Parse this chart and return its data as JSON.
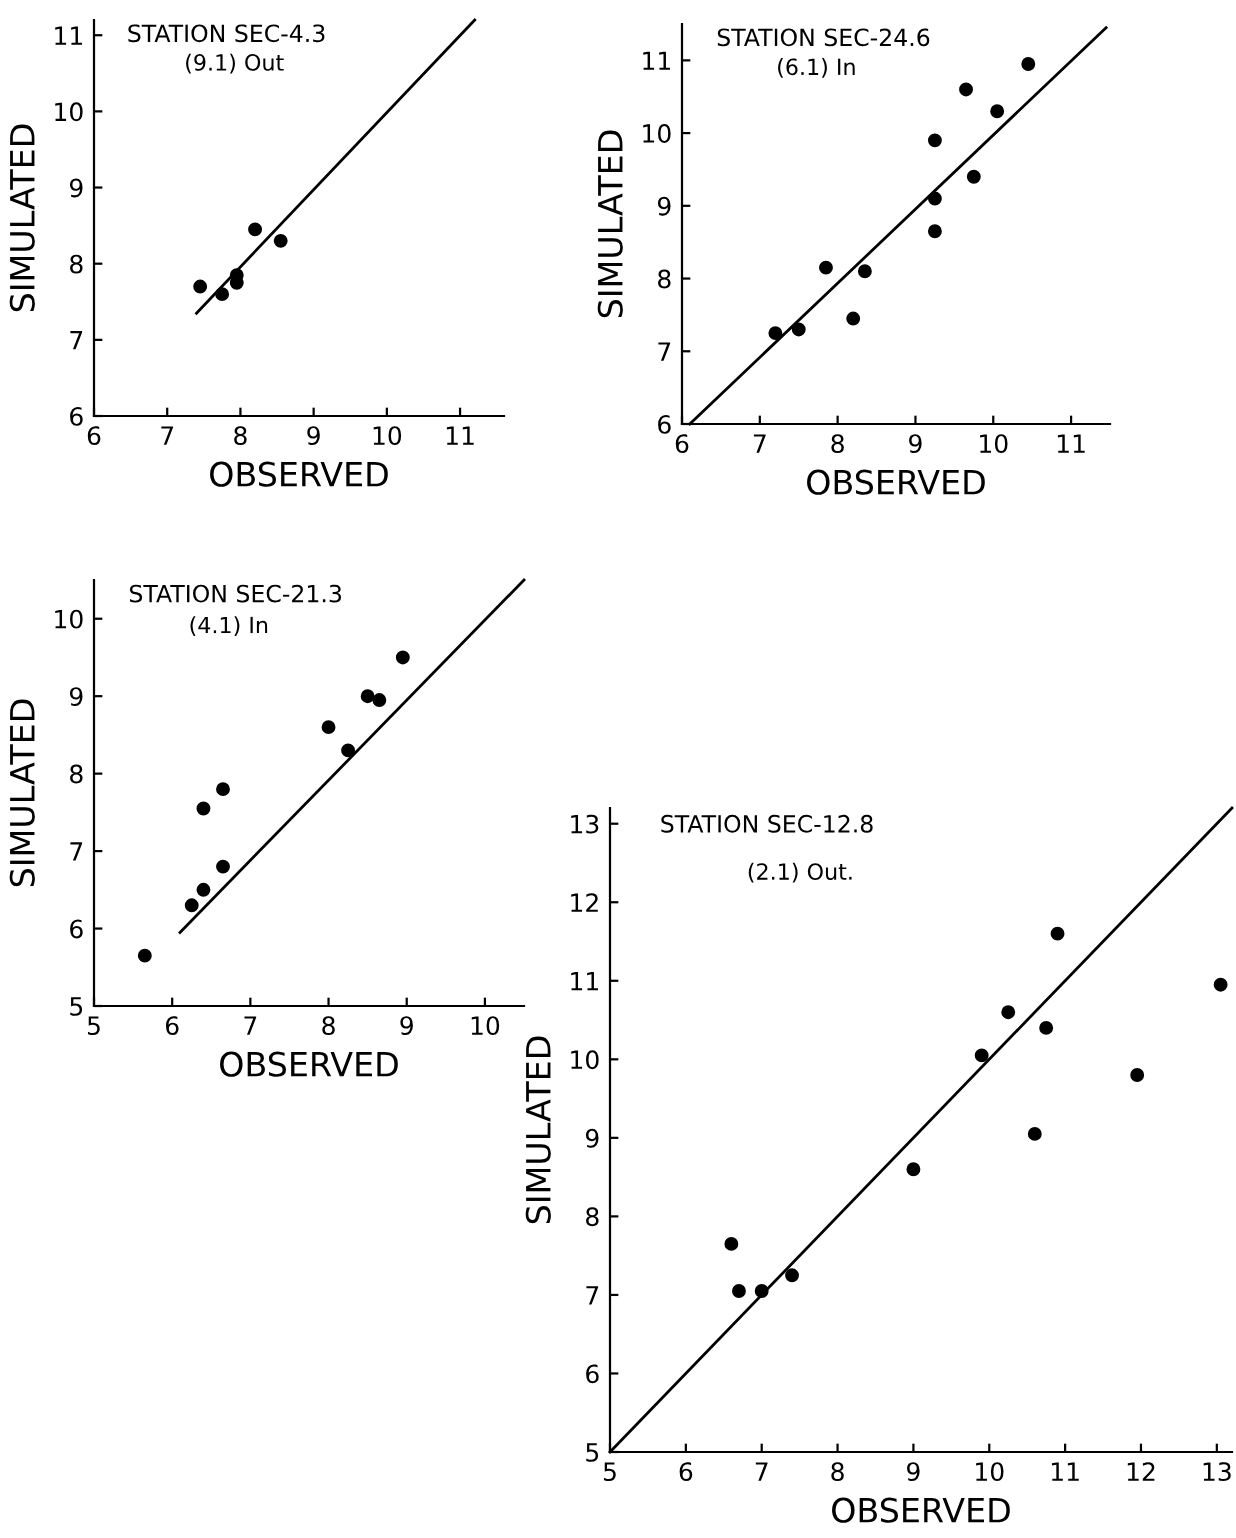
{
  "chart_data": [
    {
      "type": "scatter",
      "title": "STATION SEC-4.3",
      "subtitle": "(9.1) Out",
      "xlabel": "OBSERVED",
      "ylabel": "SIMULATED",
      "xlim": [
        6,
        11.6
      ],
      "ylim": [
        6,
        11.2
      ],
      "xticks": [
        6,
        7,
        8,
        9,
        10,
        11
      ],
      "yticks": [
        6,
        7,
        8,
        9,
        10,
        11
      ],
      "grid": false,
      "series": [
        {
          "marker": "circle",
          "color": "#000000",
          "x": [
            7.45,
            7.75,
            7.95,
            7.95,
            8.2,
            8.55
          ],
          "values": [
            7.7,
            7.6,
            7.75,
            7.85,
            8.45,
            8.3
          ]
        },
        {
          "type": "line",
          "marker": "none",
          "color": "#000000",
          "x": [
            7.4,
            11.2
          ],
          "values": [
            7.35,
            11.2
          ]
        }
      ]
    },
    {
      "type": "scatter",
      "title": "STATION SEC-24.6",
      "subtitle": "(6.1) In",
      "xlabel": "OBSERVED",
      "ylabel": "SIMULATED",
      "xlim": [
        6,
        11.5
      ],
      "ylim": [
        6,
        11.5
      ],
      "xticks": [
        6,
        7,
        8,
        9,
        10,
        11
      ],
      "yticks": [
        6,
        7,
        8,
        9,
        10,
        11
      ],
      "grid": false,
      "series": [
        {
          "marker": "circle",
          "color": "#000000",
          "x": [
            7.2,
            7.5,
            7.85,
            8.2,
            8.35,
            9.25,
            9.25,
            9.25,
            9.65,
            9.75,
            10.05,
            10.45
          ],
          "values": [
            7.25,
            7.3,
            8.15,
            7.45,
            8.1,
            9.1,
            9.9,
            8.65,
            10.6,
            9.4,
            10.3,
            10.95
          ]
        },
        {
          "type": "line",
          "marker": "none",
          "color": "#000000",
          "x": [
            6.1,
            11.45
          ],
          "values": [
            6.0,
            11.45
          ]
        }
      ]
    },
    {
      "type": "scatter",
      "title": "STATION SEC-21.3",
      "subtitle": "(4.1) In",
      "xlabel": "OBSERVED",
      "ylabel": "SIMULATED",
      "xlim": [
        5,
        10.5
      ],
      "ylim": [
        5,
        10.5
      ],
      "xticks": [
        5,
        6,
        7,
        8,
        9,
        10
      ],
      "yticks": [
        5,
        6,
        7,
        8,
        9,
        10
      ],
      "grid": false,
      "series": [
        {
          "marker": "circle",
          "color": "#000000",
          "x": [
            5.65,
            6.25,
            6.4,
            6.65,
            6.4,
            6.65,
            8.0,
            8.25,
            8.5,
            8.65,
            8.95
          ],
          "values": [
            5.65,
            6.3,
            6.5,
            6.8,
            7.55,
            7.8,
            8.6,
            8.3,
            9.0,
            8.95,
            9.5
          ]
        },
        {
          "type": "line",
          "marker": "none",
          "color": "#000000",
          "x": [
            6.1,
            10.5
          ],
          "values": [
            5.95,
            10.5
          ]
        }
      ]
    },
    {
      "type": "scatter",
      "title": "STATION SEC-12.8",
      "subtitle": "(2.1) Out.",
      "xlabel": "OBSERVED",
      "ylabel": "SIMULATED",
      "xlim": [
        5,
        13.2
      ],
      "ylim": [
        5,
        13.2
      ],
      "xticks": [
        5,
        6,
        7,
        8,
        9,
        10,
        11,
        12,
        13
      ],
      "yticks": [
        5,
        6,
        7,
        8,
        9,
        10,
        11,
        12,
        13
      ],
      "grid": false,
      "series": [
        {
          "marker": "circle",
          "color": "#000000",
          "x": [
            6.6,
            6.7,
            7.0,
            7.4,
            9.0,
            9.9,
            10.25,
            10.6,
            10.75,
            10.9,
            11.95,
            13.05
          ],
          "values": [
            7.65,
            7.05,
            7.05,
            7.25,
            8.6,
            10.05,
            10.6,
            9.05,
            10.4,
            11.6,
            9.8,
            10.95
          ]
        },
        {
          "type": "line",
          "marker": "none",
          "color": "#000000",
          "x": [
            5,
            13.2
          ],
          "values": [
            5,
            13.2
          ]
        }
      ]
    }
  ]
}
